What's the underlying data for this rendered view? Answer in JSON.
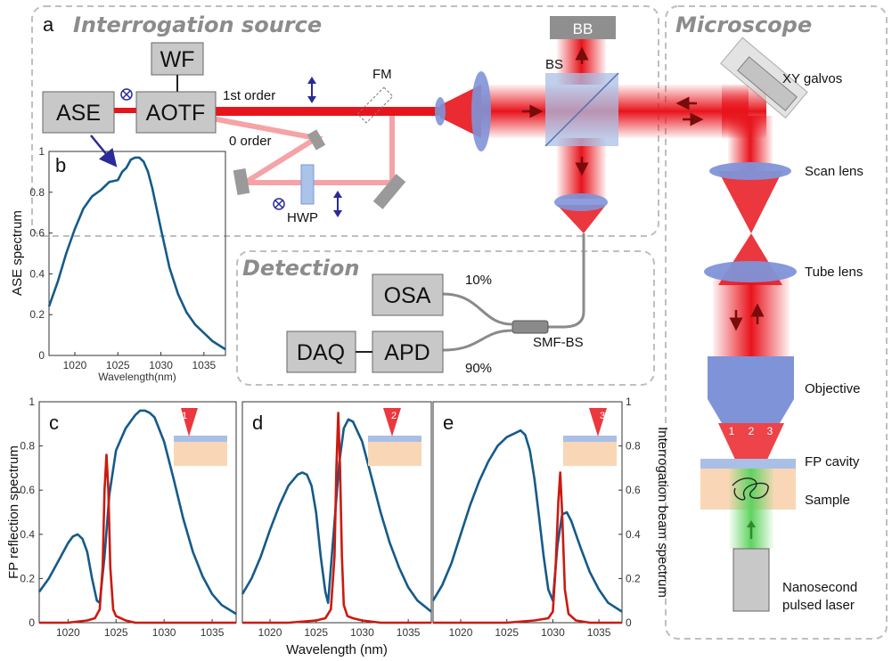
{
  "colors": {
    "beam": "#e8141c",
    "beam_light": "#f5a3a6",
    "box_fill": "#c8c8c8",
    "lens": "#7f93d8",
    "blue_curve": "#155a8a",
    "red_curve": "#cc1a10",
    "panel_border": "#bfbfbf",
    "arrow_blue": "#2a2a9a",
    "green": "#5fd35f",
    "sample": "#f9d7b6",
    "cavity": "#a9bfe6"
  },
  "panels": {
    "a": "a",
    "b": "b",
    "c": "c",
    "d": "d",
    "e": "e"
  },
  "sections": {
    "interrogation": "Interrogation source",
    "microscope": "Microscope",
    "detection": "Detection"
  },
  "boxes": {
    "ase": "ASE",
    "aotf": "AOTF",
    "wf": "WF",
    "bb": "BB",
    "osa": "OSA",
    "daq": "DAQ",
    "apd": "APD"
  },
  "labels": {
    "first_order": "1st order",
    "zero_order": "0 order",
    "fm": "FM",
    "bs": "BS",
    "hwp": "HWP",
    "pct10": "10%",
    "pct90": "90%",
    "smf_bs": "SMF-BS",
    "xy_galvos": "XY galvos",
    "scan_lens": "Scan lens",
    "tube_lens": "Tube lens",
    "objective": "Objective",
    "fp_cavity": "FP cavity",
    "sample": "Sample",
    "laser_line1": "Nanosecond",
    "laser_line2": "pulsed laser",
    "spot1": "1",
    "spot2": "2",
    "spot3": "3"
  },
  "chart_data": [
    {
      "id": "b",
      "type": "line",
      "xlabel": "Wavelength(nm)",
      "ylabel": "ASE spectrum",
      "xlim": [
        1017,
        1037.5
      ],
      "ylim": [
        0,
        1
      ],
      "xticks": [
        1020,
        1025,
        1030,
        1035
      ],
      "yticks": [
        0,
        0.2,
        0.4,
        0.6,
        0.8,
        1
      ],
      "series": [
        {
          "x": [
            1017,
            1018,
            1019,
            1020,
            1021,
            1022,
            1023,
            1024,
            1025,
            1025.5,
            1026,
            1026.5,
            1027,
            1027.5,
            1028,
            1028.5,
            1029,
            1030,
            1031,
            1032,
            1033,
            1034,
            1035,
            1036,
            1037.5
          ],
          "y": [
            0.24,
            0.36,
            0.5,
            0.62,
            0.72,
            0.78,
            0.81,
            0.85,
            0.86,
            0.9,
            0.92,
            0.96,
            0.97,
            0.97,
            0.95,
            0.9,
            0.82,
            0.62,
            0.43,
            0.3,
            0.21,
            0.15,
            0.11,
            0.07,
            0.03
          ]
        }
      ]
    },
    {
      "id": "c",
      "type": "line",
      "ylabel": "FP reflection spectrum",
      "xlim": [
        1017,
        1037.5
      ],
      "ylim": [
        0,
        1
      ],
      "xticks": [
        1020,
        1025,
        1030,
        1035
      ],
      "yticks": [
        0,
        0.2,
        0.4,
        0.6,
        0.8,
        1
      ],
      "series": [
        {
          "name": "FP reflection",
          "x": [
            1017,
            1018,
            1019,
            1020,
            1020.5,
            1021,
            1021.5,
            1022,
            1022.5,
            1023,
            1023.3,
            1023.8,
            1024.3,
            1025,
            1026,
            1027,
            1027.5,
            1028,
            1028.5,
            1029,
            1030,
            1031,
            1032,
            1033,
            1034,
            1035,
            1036,
            1037.5
          ],
          "y": [
            0.14,
            0.2,
            0.28,
            0.36,
            0.39,
            0.4,
            0.38,
            0.32,
            0.2,
            0.1,
            0.09,
            0.3,
            0.58,
            0.78,
            0.88,
            0.94,
            0.96,
            0.96,
            0.95,
            0.93,
            0.82,
            0.65,
            0.47,
            0.32,
            0.21,
            0.13,
            0.08,
            0.04
          ]
        },
        {
          "name": "Interrogation beam",
          "x": [
            1017,
            1020,
            1022,
            1022.8,
            1023.3,
            1023.6,
            1023.8,
            1024,
            1024.2,
            1024.4,
            1024.7,
            1025,
            1025.5,
            1026,
            1027,
            1030,
            1037.5
          ],
          "y": [
            0,
            0,
            0.01,
            0.02,
            0.06,
            0.25,
            0.6,
            0.76,
            0.6,
            0.25,
            0.06,
            0.03,
            0.02,
            0.01,
            0,
            0,
            0
          ]
        }
      ]
    },
    {
      "id": "d",
      "type": "line",
      "xlabel": "Wavelength (nm)",
      "xlim": [
        1017,
        1037.5
      ],
      "ylim": [
        0,
        1
      ],
      "xticks": [
        1020,
        1025,
        1030,
        1035
      ],
      "series": [
        {
          "name": "FP reflection",
          "x": [
            1017,
            1018,
            1019,
            1020,
            1021,
            1022,
            1023,
            1023.5,
            1024,
            1024.5,
            1025,
            1025.5,
            1026,
            1026.3,
            1026.8,
            1027.5,
            1028,
            1028.5,
            1029,
            1030,
            1031,
            1032,
            1033,
            1034,
            1035,
            1036,
            1037.5
          ],
          "y": [
            0.13,
            0.2,
            0.3,
            0.42,
            0.53,
            0.62,
            0.67,
            0.68,
            0.67,
            0.62,
            0.5,
            0.3,
            0.14,
            0.09,
            0.35,
            0.72,
            0.88,
            0.92,
            0.91,
            0.82,
            0.66,
            0.5,
            0.36,
            0.25,
            0.16,
            0.1,
            0.05
          ]
        },
        {
          "name": "Interrogation beam",
          "x": [
            1017,
            1022,
            1025,
            1026,
            1026.6,
            1027,
            1027.2,
            1027.4,
            1027.6,
            1027.8,
            1028,
            1028.4,
            1029,
            1030,
            1032,
            1037.5
          ],
          "y": [
            0,
            0,
            0.01,
            0.02,
            0.06,
            0.3,
            0.7,
            0.95,
            0.7,
            0.3,
            0.08,
            0.03,
            0.02,
            0.01,
            0,
            0
          ]
        }
      ]
    },
    {
      "id": "e",
      "type": "line",
      "ylabel": "Interrogation beam spectrum",
      "xlim": [
        1017,
        1037.5
      ],
      "ylim": [
        0,
        1
      ],
      "xticks": [
        1020,
        1025,
        1030,
        1035
      ],
      "yticks": [
        0,
        0.2,
        0.4,
        0.6,
        0.8,
        1
      ],
      "series": [
        {
          "name": "FP reflection",
          "x": [
            1017,
            1018,
            1019,
            1020,
            1021,
            1022,
            1023,
            1024,
            1025,
            1026,
            1026.5,
            1027,
            1027.5,
            1028,
            1028.5,
            1029,
            1029.5,
            1030,
            1030.5,
            1031,
            1031.5,
            1032,
            1033,
            1034,
            1035,
            1036,
            1037.5
          ],
          "y": [
            0.1,
            0.17,
            0.27,
            0.4,
            0.53,
            0.64,
            0.73,
            0.8,
            0.84,
            0.86,
            0.87,
            0.85,
            0.78,
            0.65,
            0.48,
            0.3,
            0.15,
            0.1,
            0.35,
            0.49,
            0.5,
            0.46,
            0.34,
            0.23,
            0.15,
            0.09,
            0.05
          ]
        },
        {
          "name": "Interrogation beam",
          "x": [
            1017,
            1025,
            1028,
            1029.5,
            1030,
            1030.3,
            1030.6,
            1030.8,
            1031,
            1031.3,
            1031.7,
            1032.5,
            1034,
            1037.5
          ],
          "y": [
            0,
            0,
            0.01,
            0.02,
            0.05,
            0.25,
            0.55,
            0.68,
            0.5,
            0.15,
            0.04,
            0.01,
            0,
            0
          ]
        }
      ]
    }
  ]
}
